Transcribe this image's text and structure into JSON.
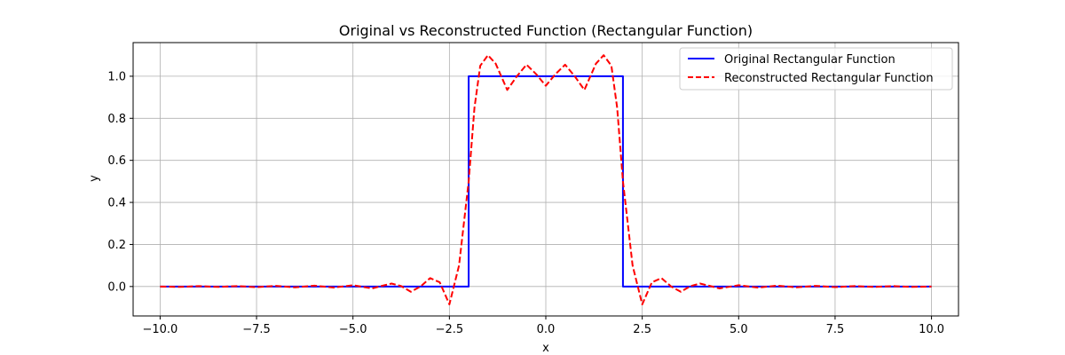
{
  "chart_data": {
    "type": "line",
    "title": "Original vs Reconstructed Function (Rectangular Function)",
    "xlabel": "x",
    "ylabel": "y",
    "xlim": [
      -10.7,
      10.7
    ],
    "ylim": [
      -0.14,
      1.16
    ],
    "xticks": [
      -10.0,
      -7.5,
      -5.0,
      -2.5,
      0.0,
      2.5,
      5.0,
      7.5,
      10.0
    ],
    "xtick_labels": [
      "−10.0",
      "−7.5",
      "−5.0",
      "−2.5",
      "0.0",
      "2.5",
      "5.0",
      "7.5",
      "10.0"
    ],
    "yticks": [
      0.0,
      0.2,
      0.4,
      0.6,
      0.8,
      1.0
    ],
    "ytick_labels": [
      "0.0",
      "0.2",
      "0.4",
      "0.6",
      "0.8",
      "1.0"
    ],
    "grid": true,
    "legend_position": "top-right",
    "series": [
      {
        "name": "Original Rectangular Function",
        "color": "#0000ff",
        "style": "solid",
        "x": [
          -10,
          -2,
          -2,
          2,
          2,
          10
        ],
        "y": [
          0,
          0,
          1,
          1,
          0,
          0
        ]
      },
      {
        "name": "Reconstructed Rectangular Function",
        "color": "#ff0000",
        "style": "dashed",
        "x": [
          -10,
          -9.5,
          -9,
          -8.5,
          -8,
          -7.5,
          -7,
          -6.5,
          -6,
          -5.5,
          -5,
          -4.5,
          -4.25,
          -4,
          -3.75,
          -3.5,
          -3.25,
          -3,
          -2.75,
          -2.5,
          -2.25,
          -2,
          -1.85,
          -1.7,
          -1.5,
          -1.3,
          -1,
          -0.75,
          -0.5,
          -0.25,
          0,
          0.25,
          0.5,
          0.75,
          1,
          1.3,
          1.5,
          1.7,
          1.85,
          2,
          2.25,
          2.5,
          2.75,
          3,
          3.25,
          3.5,
          3.75,
          4,
          4.25,
          4.5,
          5,
          5.5,
          6,
          6.5,
          7,
          7.5,
          8,
          8.5,
          9,
          9.5,
          10
        ],
        "y": [
          0,
          -0.002,
          0.002,
          -0.002,
          0.002,
          -0.003,
          0.003,
          -0.004,
          0.004,
          -0.005,
          0.006,
          -0.009,
          0.003,
          0.014,
          0.002,
          -0.025,
          0.0,
          0.04,
          0.02,
          -0.085,
          0.1,
          0.5,
          0.85,
          1.05,
          1.1,
          1.06,
          0.935,
          1.0,
          1.055,
          1.01,
          0.955,
          1.01,
          1.055,
          1.0,
          0.935,
          1.06,
          1.1,
          1.05,
          0.85,
          0.5,
          0.1,
          -0.085,
          0.02,
          0.04,
          0.0,
          -0.025,
          0.002,
          0.014,
          0.003,
          -0.009,
          0.006,
          -0.005,
          0.004,
          -0.004,
          0.003,
          -0.003,
          0.002,
          -0.002,
          0.002,
          -0.002,
          0
        ]
      }
    ]
  }
}
